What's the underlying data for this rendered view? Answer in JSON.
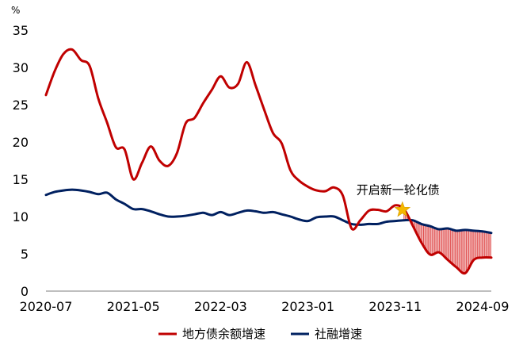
{
  "chart_data": {
    "type": "line",
    "y_unit": "%",
    "ylim": [
      0,
      35
    ],
    "y_ticks": [
      0,
      5,
      10,
      15,
      20,
      25,
      30,
      35
    ],
    "x_range": [
      "2020-07",
      "2024-10"
    ],
    "x_ticks": [
      "2020-07",
      "2021-05",
      "2022-03",
      "2023-01",
      "2023-11",
      "2024-09"
    ],
    "grid": false,
    "legend_position": "bottom",
    "colors": {
      "local": "#C00000",
      "social": "#002060",
      "fill": "#E05050",
      "star": "#F5B800"
    },
    "series": [
      {
        "name": "地方债余额增速",
        "points": [
          [
            "2020-07",
            26.3
          ],
          [
            "2020-08",
            29.5
          ],
          [
            "2020-09",
            31.8
          ],
          [
            "2020-10",
            32.4
          ],
          [
            "2020-11",
            31.0
          ],
          [
            "2020-12",
            30.2
          ],
          [
            "2021-01",
            25.8
          ],
          [
            "2021-02",
            22.6
          ],
          [
            "2021-03",
            19.3
          ],
          [
            "2021-04",
            19.0
          ],
          [
            "2021-05",
            15.0
          ],
          [
            "2021-06",
            17.2
          ],
          [
            "2021-07",
            19.4
          ],
          [
            "2021-08",
            17.5
          ],
          [
            "2021-09",
            16.8
          ],
          [
            "2021-10",
            18.5
          ],
          [
            "2021-11",
            22.5
          ],
          [
            "2021-12",
            23.2
          ],
          [
            "2022-01",
            25.2
          ],
          [
            "2022-02",
            27.0
          ],
          [
            "2022-03",
            28.8
          ],
          [
            "2022-04",
            27.3
          ],
          [
            "2022-05",
            27.8
          ],
          [
            "2022-06",
            30.7
          ],
          [
            "2022-07",
            27.6
          ],
          [
            "2022-08",
            24.3
          ],
          [
            "2022-09",
            21.2
          ],
          [
            "2022-10",
            19.8
          ],
          [
            "2022-11",
            16.2
          ],
          [
            "2022-12",
            14.8
          ],
          [
            "2023-01",
            14.0
          ],
          [
            "2023-02",
            13.5
          ],
          [
            "2023-03",
            13.4
          ],
          [
            "2023-04",
            13.9
          ],
          [
            "2023-05",
            12.8
          ],
          [
            "2023-06",
            8.4
          ],
          [
            "2023-07",
            9.5
          ],
          [
            "2023-08",
            10.8
          ],
          [
            "2023-09",
            10.9
          ],
          [
            "2023-10",
            10.7
          ],
          [
            "2023-11",
            11.5
          ],
          [
            "2023-12",
            11.0
          ],
          [
            "2024-01",
            8.8
          ],
          [
            "2024-02",
            6.5
          ],
          [
            "2024-03",
            4.9
          ],
          [
            "2024-04",
            5.2
          ],
          [
            "2024-05",
            4.2
          ],
          [
            "2024-06",
            3.2
          ],
          [
            "2024-07",
            2.4
          ],
          [
            "2024-08",
            4.2
          ],
          [
            "2024-09",
            4.5
          ],
          [
            "2024-10",
            4.5
          ]
        ]
      },
      {
        "name": "社融增速",
        "points": [
          [
            "2020-07",
            12.9
          ],
          [
            "2020-08",
            13.3
          ],
          [
            "2020-09",
            13.5
          ],
          [
            "2020-10",
            13.6
          ],
          [
            "2020-11",
            13.5
          ],
          [
            "2020-12",
            13.3
          ],
          [
            "2021-01",
            13.0
          ],
          [
            "2021-02",
            13.2
          ],
          [
            "2021-03",
            12.3
          ],
          [
            "2021-04",
            11.7
          ],
          [
            "2021-05",
            11.0
          ],
          [
            "2021-06",
            11.0
          ],
          [
            "2021-07",
            10.7
          ],
          [
            "2021-08",
            10.3
          ],
          [
            "2021-09",
            10.0
          ],
          [
            "2021-10",
            10.0
          ],
          [
            "2021-11",
            10.1
          ],
          [
            "2021-12",
            10.3
          ],
          [
            "2022-01",
            10.5
          ],
          [
            "2022-02",
            10.2
          ],
          [
            "2022-03",
            10.6
          ],
          [
            "2022-04",
            10.2
          ],
          [
            "2022-05",
            10.5
          ],
          [
            "2022-06",
            10.8
          ],
          [
            "2022-07",
            10.7
          ],
          [
            "2022-08",
            10.5
          ],
          [
            "2022-09",
            10.6
          ],
          [
            "2022-10",
            10.3
          ],
          [
            "2022-11",
            10.0
          ],
          [
            "2022-12",
            9.6
          ],
          [
            "2023-01",
            9.4
          ],
          [
            "2023-02",
            9.9
          ],
          [
            "2023-03",
            10.0
          ],
          [
            "2023-04",
            10.0
          ],
          [
            "2023-05",
            9.5
          ],
          [
            "2023-06",
            9.0
          ],
          [
            "2023-07",
            8.9
          ],
          [
            "2023-08",
            9.0
          ],
          [
            "2023-09",
            9.0
          ],
          [
            "2023-10",
            9.3
          ],
          [
            "2023-11",
            9.4
          ],
          [
            "2023-12",
            9.5
          ],
          [
            "2024-01",
            9.5
          ],
          [
            "2024-02",
            9.0
          ],
          [
            "2024-03",
            8.7
          ],
          [
            "2024-04",
            8.3
          ],
          [
            "2024-05",
            8.4
          ],
          [
            "2024-06",
            8.1
          ],
          [
            "2024-07",
            8.2
          ],
          [
            "2024-08",
            8.1
          ],
          [
            "2024-09",
            8.0
          ],
          [
            "2024-10",
            7.8
          ]
        ]
      }
    ],
    "annotations": [
      {
        "text": "开启新一轮化债",
        "x": "2023-12",
        "y": 10.9,
        "marker": "star"
      }
    ],
    "shaded_region": {
      "between": [
        "社融增速",
        "地方债余额增速"
      ],
      "from": "2023-12",
      "to": "2024-10"
    }
  }
}
